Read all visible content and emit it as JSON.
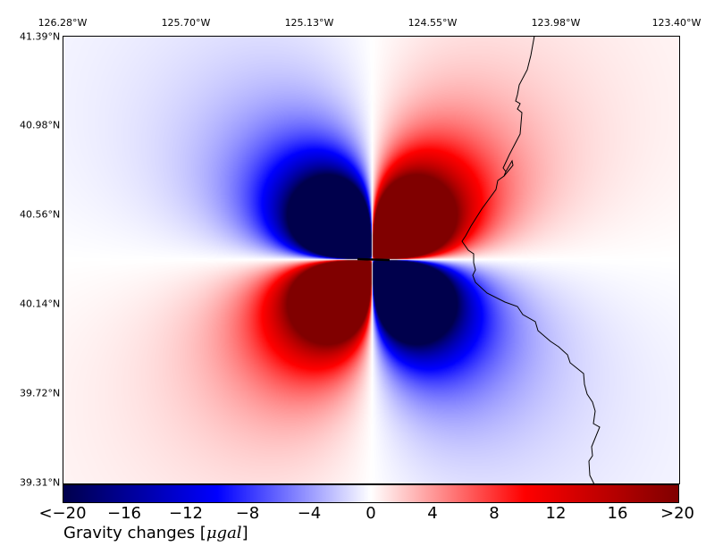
{
  "map": {
    "lon_labels": [
      "126.28°W",
      "125.70°W",
      "125.13°W",
      "124.55°W",
      "123.98°W",
      "123.40°W"
    ],
    "lat_labels": [
      "41.39°N",
      "40.98°N",
      "40.56°N",
      "40.14°N",
      "39.72°N",
      "39.31°N"
    ],
    "extent": {
      "lon_min": -126.28,
      "lon_max": -123.4,
      "lat_min": 39.31,
      "lat_max": 41.39
    },
    "field": "gravity change quadrupole pattern around E-W fault",
    "fault_trace": {
      "lon_start": -124.95,
      "lon_end": -124.76,
      "lat": 40.31
    },
    "coastline_icon": "coastline"
  },
  "colorbar": {
    "ticks": [
      "<−20",
      "−16",
      "−12",
      "−8",
      "−4",
      "0",
      "4",
      "8",
      "12",
      "16",
      ">20"
    ],
    "label_prefix": "Gravity changes [",
    "label_unit": "μgal",
    "label_suffix": "]",
    "colormap": "seismic",
    "range": [
      -20,
      20
    ],
    "colors": {
      "neg_end": "#00004c",
      "neg_mid": "#0000ff",
      "zero": "#ffffff",
      "pos_mid": "#ff0000",
      "pos_end": "#800000"
    }
  }
}
